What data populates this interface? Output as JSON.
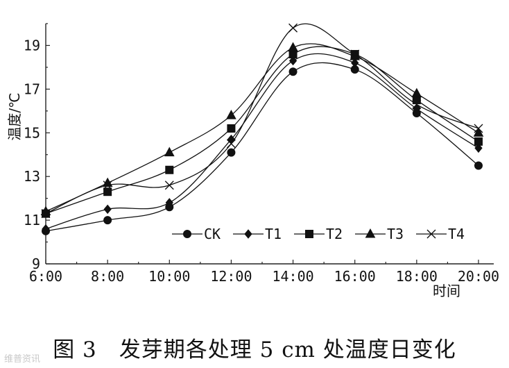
{
  "chart_data": {
    "type": "line",
    "caption": "图 3　发芽期各处理 5 cm 处温度日变化",
    "xlabel": "时间",
    "ylabel": "温度/℃",
    "categories": [
      "6:00",
      "8:00",
      "10:00",
      "12:00",
      "14:00",
      "16:00",
      "18:00",
      "20:00"
    ],
    "ylim": [
      9,
      20
    ],
    "yticks": [
      9,
      11,
      13,
      15,
      17,
      19
    ],
    "grid": false,
    "legend_position": "bottom-right",
    "series": [
      {
        "name": "CK",
        "marker": "circle",
        "values": [
          10.5,
          11.0,
          11.6,
          14.1,
          17.8,
          17.9,
          15.9,
          13.5
        ]
      },
      {
        "name": "T1",
        "marker": "diamond",
        "values": [
          10.6,
          11.5,
          11.8,
          14.7,
          18.3,
          18.2,
          16.1,
          14.3
        ]
      },
      {
        "name": "T2",
        "marker": "square",
        "values": [
          11.3,
          12.3,
          13.3,
          15.2,
          18.6,
          18.6,
          16.5,
          14.6
        ]
      },
      {
        "name": "T3",
        "marker": "triangle",
        "values": [
          11.4,
          12.7,
          14.1,
          15.8,
          18.9,
          18.5,
          16.8,
          15.0
        ]
      },
      {
        "name": "T4",
        "marker": "x",
        "values": [
          11.3,
          12.6,
          12.6,
          14.5,
          19.8,
          18.6,
          16.3,
          15.2
        ]
      }
    ]
  },
  "watermark": "维普资讯"
}
